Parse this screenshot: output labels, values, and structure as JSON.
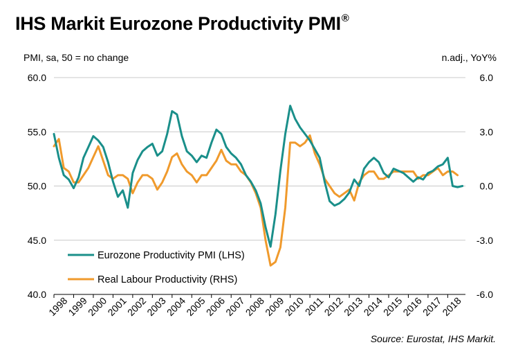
{
  "title": "IHS Markit Eurozone Productivity PMI",
  "title_mark": "®",
  "left_unit": "PMI,  sa, 50 = no change",
  "right_unit": "n.adj., YoY%",
  "source": "Source: Eurostat, IHS Markit.",
  "colors": {
    "pmi": "#1a8f8a",
    "labour": "#f09a2c",
    "grid": "#c8c8c8",
    "axis": "#000000"
  },
  "chart_data": {
    "type": "line",
    "left_axis": {
      "ylim": [
        40,
        60
      ],
      "ticks": [
        "40.0",
        "45.0",
        "50.0",
        "55.0",
        "60.0"
      ]
    },
    "right_axis": {
      "ylim": [
        -6,
        6
      ],
      "ticks": [
        "-6.0",
        "-3.0",
        "0.0",
        "3.0",
        "6.0"
      ]
    },
    "x_axis": {
      "xlim": [
        1998.0,
        2018.9
      ],
      "ticks": [
        "1998",
        "1999",
        "2000",
        "2001",
        "2002",
        "2003",
        "2004",
        "2005",
        "2006",
        "2007",
        "2008",
        "2009",
        "2010",
        "2011",
        "2012",
        "2013",
        "2014",
        "2015",
        "2016",
        "2017",
        "2018"
      ]
    },
    "legend_position": "bottom-left",
    "grid": "horizontal",
    "series": [
      {
        "name": "Eurozone Productivity PMI (LHS)",
        "axis": "left",
        "points": [
          [
            1998.0,
            54.8
          ],
          [
            1998.25,
            52.6
          ],
          [
            1998.5,
            51.0
          ],
          [
            1998.75,
            50.6
          ],
          [
            1999.0,
            49.8
          ],
          [
            1999.25,
            50.8
          ],
          [
            1999.5,
            52.6
          ],
          [
            1999.75,
            53.6
          ],
          [
            2000.0,
            54.6
          ],
          [
            2000.25,
            54.2
          ],
          [
            2000.5,
            53.6
          ],
          [
            2000.75,
            52.2
          ],
          [
            2001.0,
            50.4
          ],
          [
            2001.25,
            49.0
          ],
          [
            2001.5,
            49.6
          ],
          [
            2001.75,
            48.0
          ],
          [
            2002.0,
            51.2
          ],
          [
            2002.25,
            52.4
          ],
          [
            2002.5,
            53.2
          ],
          [
            2002.75,
            53.6
          ],
          [
            2003.0,
            53.9
          ],
          [
            2003.25,
            52.8
          ],
          [
            2003.5,
            53.2
          ],
          [
            2003.75,
            54.8
          ],
          [
            2004.0,
            56.9
          ],
          [
            2004.25,
            56.6
          ],
          [
            2004.5,
            54.6
          ],
          [
            2004.75,
            53.2
          ],
          [
            2005.0,
            52.8
          ],
          [
            2005.25,
            52.2
          ],
          [
            2005.5,
            52.8
          ],
          [
            2005.75,
            52.6
          ],
          [
            2006.0,
            54.0
          ],
          [
            2006.25,
            55.2
          ],
          [
            2006.5,
            54.8
          ],
          [
            2006.75,
            53.6
          ],
          [
            2007.0,
            53.0
          ],
          [
            2007.25,
            52.6
          ],
          [
            2007.5,
            52.0
          ],
          [
            2007.75,
            51.0
          ],
          [
            2008.0,
            50.4
          ],
          [
            2008.25,
            49.6
          ],
          [
            2008.5,
            48.4
          ],
          [
            2008.75,
            46.2
          ],
          [
            2009.0,
            44.4
          ],
          [
            2009.25,
            47.4
          ],
          [
            2009.5,
            51.4
          ],
          [
            2009.75,
            54.8
          ],
          [
            2010.0,
            57.4
          ],
          [
            2010.25,
            56.2
          ],
          [
            2010.5,
            55.4
          ],
          [
            2010.75,
            54.8
          ],
          [
            2011.0,
            54.2
          ],
          [
            2011.25,
            53.4
          ],
          [
            2011.5,
            52.6
          ],
          [
            2011.75,
            50.4
          ],
          [
            2012.0,
            48.6
          ],
          [
            2012.25,
            48.2
          ],
          [
            2012.5,
            48.4
          ],
          [
            2012.75,
            48.8
          ],
          [
            2013.0,
            49.4
          ],
          [
            2013.25,
            50.6
          ],
          [
            2013.5,
            50.0
          ],
          [
            2013.75,
            51.6
          ],
          [
            2014.0,
            52.2
          ],
          [
            2014.25,
            52.6
          ],
          [
            2014.5,
            52.2
          ],
          [
            2014.75,
            51.2
          ],
          [
            2015.0,
            50.8
          ],
          [
            2015.25,
            51.6
          ],
          [
            2015.5,
            51.4
          ],
          [
            2015.75,
            51.2
          ],
          [
            2016.0,
            50.8
          ],
          [
            2016.25,
            50.4
          ],
          [
            2016.5,
            50.8
          ],
          [
            2016.75,
            50.6
          ],
          [
            2017.0,
            51.2
          ],
          [
            2017.25,
            51.4
          ],
          [
            2017.5,
            51.8
          ],
          [
            2017.75,
            52.0
          ],
          [
            2018.0,
            52.6
          ],
          [
            2018.25,
            50.0
          ],
          [
            2018.5,
            49.9
          ],
          [
            2018.75,
            50.0
          ]
        ]
      },
      {
        "name": "Real Labour Productivity (RHS)",
        "axis": "right",
        "points": [
          [
            1998.0,
            2.2
          ],
          [
            1998.25,
            2.6
          ],
          [
            1998.5,
            1.0
          ],
          [
            1998.75,
            0.8
          ],
          [
            1999.0,
            0.2
          ],
          [
            1999.25,
            0.2
          ],
          [
            1999.5,
            0.6
          ],
          [
            1999.75,
            1.0
          ],
          [
            2000.0,
            1.6
          ],
          [
            2000.25,
            2.2
          ],
          [
            2000.5,
            1.4
          ],
          [
            2000.75,
            0.6
          ],
          [
            2001.0,
            0.4
          ],
          [
            2001.25,
            0.6
          ],
          [
            2001.5,
            0.6
          ],
          [
            2001.75,
            0.4
          ],
          [
            2002.0,
            -0.4
          ],
          [
            2002.25,
            0.2
          ],
          [
            2002.5,
            0.6
          ],
          [
            2002.75,
            0.6
          ],
          [
            2003.0,
            0.4
          ],
          [
            2003.25,
            -0.2
          ],
          [
            2003.5,
            0.2
          ],
          [
            2003.75,
            0.8
          ],
          [
            2004.0,
            1.6
          ],
          [
            2004.25,
            1.8
          ],
          [
            2004.5,
            1.2
          ],
          [
            2004.75,
            0.8
          ],
          [
            2005.0,
            0.6
          ],
          [
            2005.25,
            0.2
          ],
          [
            2005.5,
            0.6
          ],
          [
            2005.75,
            0.6
          ],
          [
            2006.0,
            1.0
          ],
          [
            2006.25,
            1.4
          ],
          [
            2006.5,
            2.0
          ],
          [
            2006.75,
            1.4
          ],
          [
            2007.0,
            1.2
          ],
          [
            2007.25,
            1.2
          ],
          [
            2007.5,
            0.8
          ],
          [
            2007.75,
            0.6
          ],
          [
            2008.0,
            0.2
          ],
          [
            2008.25,
            -0.4
          ],
          [
            2008.5,
            -1.2
          ],
          [
            2008.75,
            -3.0
          ],
          [
            2009.0,
            -4.4
          ],
          [
            2009.25,
            -4.2
          ],
          [
            2009.5,
            -3.4
          ],
          [
            2009.75,
            -1.2
          ],
          [
            2010.0,
            2.4
          ],
          [
            2010.25,
            2.4
          ],
          [
            2010.5,
            2.2
          ],
          [
            2010.75,
            2.4
          ],
          [
            2011.0,
            2.8
          ],
          [
            2011.25,
            1.8
          ],
          [
            2011.5,
            1.2
          ],
          [
            2011.75,
            0.4
          ],
          [
            2012.0,
            0.0
          ],
          [
            2012.25,
            -0.4
          ],
          [
            2012.5,
            -0.6
          ],
          [
            2012.75,
            -0.4
          ],
          [
            2013.0,
            -0.2
          ],
          [
            2013.25,
            -0.8
          ],
          [
            2013.5,
            0.2
          ],
          [
            2013.75,
            0.6
          ],
          [
            2014.0,
            0.8
          ],
          [
            2014.25,
            0.8
          ],
          [
            2014.5,
            0.4
          ],
          [
            2014.75,
            0.4
          ],
          [
            2015.0,
            0.6
          ],
          [
            2015.25,
            0.8
          ],
          [
            2015.5,
            0.8
          ],
          [
            2015.75,
            0.8
          ],
          [
            2016.0,
            0.8
          ],
          [
            2016.25,
            0.8
          ],
          [
            2016.5,
            0.4
          ],
          [
            2016.75,
            0.6
          ],
          [
            2017.0,
            0.6
          ],
          [
            2017.25,
            0.8
          ],
          [
            2017.5,
            1.0
          ],
          [
            2017.75,
            0.6
          ],
          [
            2018.0,
            0.8
          ],
          [
            2018.25,
            0.8
          ],
          [
            2018.5,
            0.6
          ]
        ]
      }
    ]
  }
}
